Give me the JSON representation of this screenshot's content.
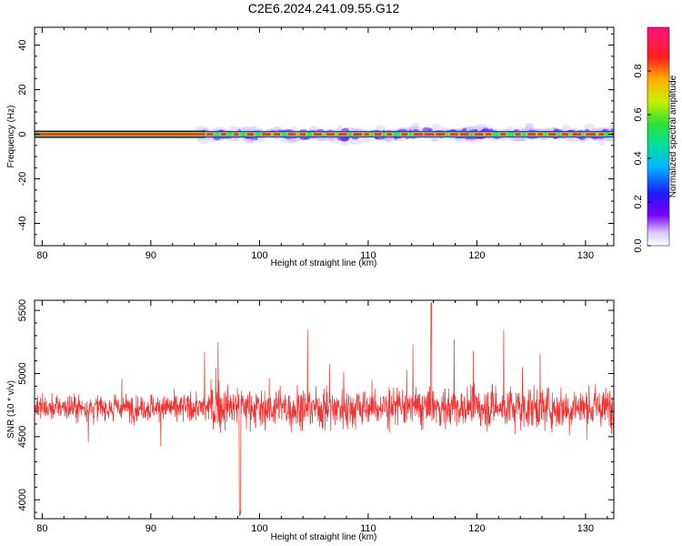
{
  "title": "C2E6.2024.241.09.55.G12",
  "chart_data": [
    {
      "type": "heatmap",
      "xlabel": "Height of straight line (km)",
      "ylabel": "Frequency (Hz)",
      "xlim": [
        79.3,
        132.6
      ],
      "ylim": [
        -50,
        48
      ],
      "xticks": [
        80,
        90,
        100,
        110,
        120,
        130
      ],
      "yticks": [
        -40,
        -20,
        0,
        20,
        40
      ],
      "colorbar": {
        "label": "Normalized spectral amplitude",
        "range": [
          0,
          1
        ],
        "ticks": [
          0.0,
          0.2,
          0.4,
          0.6,
          0.8
        ],
        "colormap": "rainbow (violet-blue-cyan-green-yellow-orange-red-magenta)"
      },
      "features": {
        "signal_center_hz": 0,
        "clean_carrier_until_km": 95,
        "noisy_spread_after_km": 95
      }
    },
    {
      "type": "line",
      "xlabel": "Height of straight line (km)",
      "ylabel": "SNR (10 * v/v)",
      "xlim": [
        79.3,
        132.6
      ],
      "ylim": [
        3850,
        5580
      ],
      "xticks": [
        80,
        90,
        100,
        110,
        120,
        130
      ],
      "yticks": [
        4000,
        4500,
        5000,
        5500
      ],
      "series": [
        {
          "color": "#ee3333",
          "mean": 4730,
          "typical_band": [
            4550,
            4950
          ],
          "min": 3870,
          "min_at_km": 98.2,
          "max": 5560,
          "max_at_km": 115.8
        }
      ]
    }
  ]
}
